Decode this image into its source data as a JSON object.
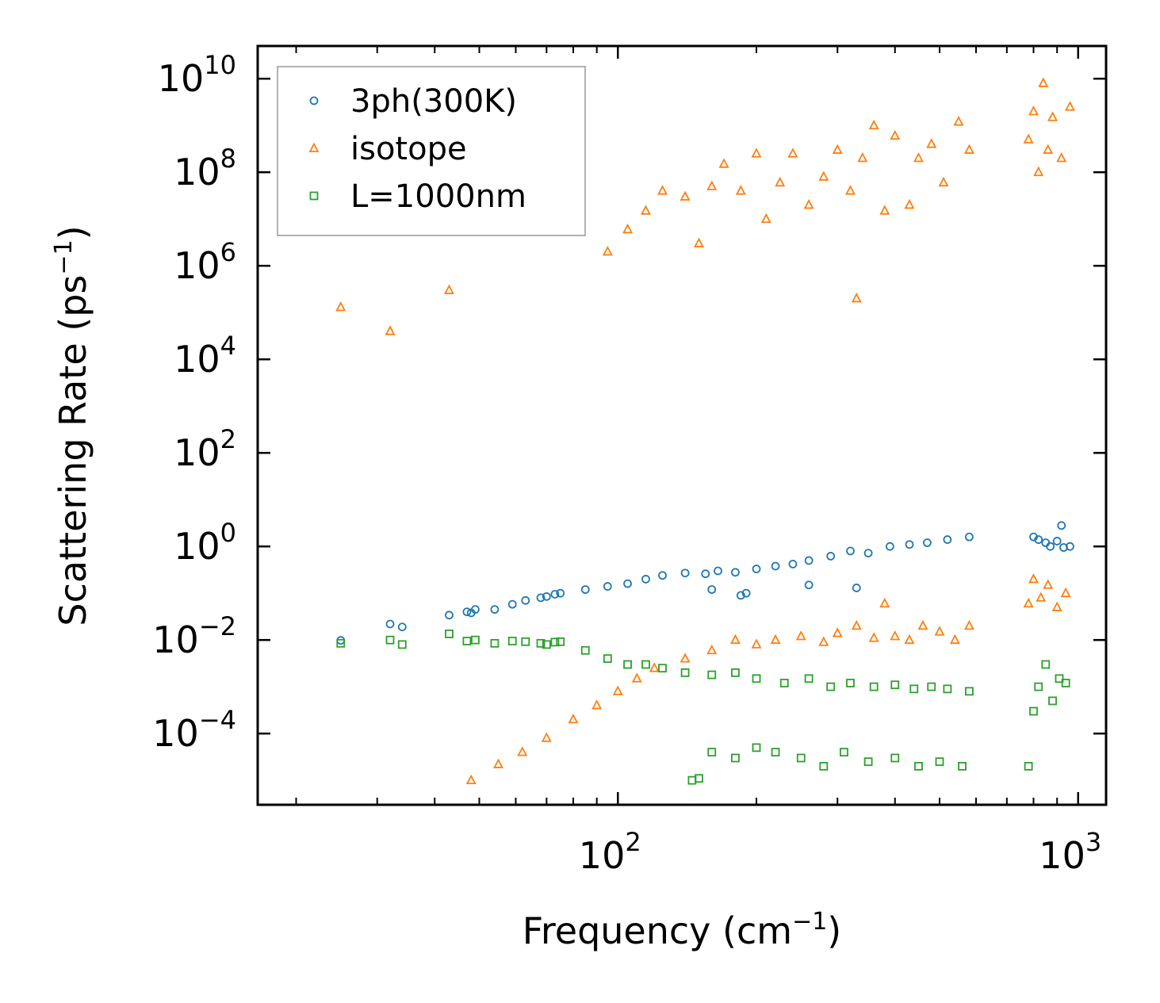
{
  "chart_data": {
    "type": "scatter",
    "title": "",
    "xlabel": "Frequency (cm",
    "xlabel_sup": "−1",
    "xlabel_tail": ")",
    "ylabel": "Scattering Rate (ps",
    "ylabel_sup": "−1",
    "ylabel_tail": ")",
    "xscale": "log",
    "yscale": "log",
    "xlim": [
      16.5,
      1150
    ],
    "ylim": [
      3e-06,
      50000000000.0
    ],
    "x_ticks": [
      {
        "value": 100,
        "base": "10",
        "exp": "2"
      },
      {
        "value": 1000,
        "base": "10",
        "exp": "3"
      }
    ],
    "y_ticks": [
      {
        "value": 0.0001,
        "base": "10",
        "exp": "−4"
      },
      {
        "value": 0.01,
        "base": "10",
        "exp": "−2"
      },
      {
        "value": 1,
        "base": "10",
        "exp": "0"
      },
      {
        "value": 100,
        "base": "10",
        "exp": "2"
      },
      {
        "value": 10000.0,
        "base": "10",
        "exp": "4"
      },
      {
        "value": 1000000.0,
        "base": "10",
        "exp": "6"
      },
      {
        "value": 100000000.0,
        "base": "10",
        "exp": "8"
      },
      {
        "value": 10000000000.0,
        "base": "10",
        "exp": "10"
      }
    ],
    "legend_position": "top-left",
    "series": [
      {
        "name": "3ph(300K)",
        "marker": "circle",
        "color": "#1f77b4",
        "points": [
          [
            25,
            0.0098
          ],
          [
            32,
            0.022
          ],
          [
            34,
            0.019
          ],
          [
            43,
            0.034
          ],
          [
            47,
            0.04
          ],
          [
            48,
            0.038
          ],
          [
            49,
            0.045
          ],
          [
            54,
            0.045
          ],
          [
            59,
            0.058
          ],
          [
            63,
            0.07
          ],
          [
            68,
            0.08
          ],
          [
            70,
            0.085
          ],
          [
            73,
            0.095
          ],
          [
            75,
            0.1
          ],
          [
            85,
            0.12
          ],
          [
            95,
            0.14
          ],
          [
            105,
            0.16
          ],
          [
            115,
            0.2
          ],
          [
            125,
            0.24
          ],
          [
            140,
            0.27
          ],
          [
            155,
            0.26
          ],
          [
            165,
            0.3
          ],
          [
            180,
            0.28
          ],
          [
            200,
            0.33
          ],
          [
            220,
            0.38
          ],
          [
            240,
            0.42
          ],
          [
            260,
            0.5
          ],
          [
            290,
            0.62
          ],
          [
            320,
            0.8
          ],
          [
            350,
            0.72
          ],
          [
            390,
            1.0
          ],
          [
            430,
            1.1
          ],
          [
            470,
            1.2
          ],
          [
            520,
            1.4
          ],
          [
            580,
            1.6
          ],
          [
            160,
            0.12
          ],
          [
            185,
            0.09
          ],
          [
            190,
            0.1
          ],
          [
            330,
            0.13
          ],
          [
            260,
            0.15
          ],
          [
            800,
            1.6
          ],
          [
            820,
            1.4
          ],
          [
            850,
            1.2
          ],
          [
            870,
            1.0
          ],
          [
            900,
            1.3
          ],
          [
            930,
            0.95
          ],
          [
            960,
            1.0
          ],
          [
            920,
            2.8
          ]
        ]
      },
      {
        "name": "isotope",
        "marker": "triangle",
        "color": "#ff7f0e",
        "points": [
          [
            25,
            130000.0
          ],
          [
            32,
            40000.0
          ],
          [
            43,
            300000.0
          ],
          [
            330,
            200000.0
          ],
          [
            95,
            2000000.0
          ],
          [
            105,
            6000000.0
          ],
          [
            115,
            15000000.0
          ],
          [
            125,
            40000000.0
          ],
          [
            140,
            30000000.0
          ],
          [
            150,
            3000000.0
          ],
          [
            160,
            50000000.0
          ],
          [
            170,
            150000000.0
          ],
          [
            185,
            40000000.0
          ],
          [
            200,
            250000000.0
          ],
          [
            210,
            10000000.0
          ],
          [
            225,
            60000000.0
          ],
          [
            240,
            250000000.0
          ],
          [
            260,
            20000000.0
          ],
          [
            280,
            80000000.0
          ],
          [
            300,
            300000000.0
          ],
          [
            320,
            40000000.0
          ],
          [
            340,
            200000000.0
          ],
          [
            360,
            1000000000.0
          ],
          [
            380,
            15000000.0
          ],
          [
            400,
            600000000.0
          ],
          [
            430,
            20000000.0
          ],
          [
            450,
            200000000.0
          ],
          [
            480,
            400000000.0
          ],
          [
            510,
            60000000.0
          ],
          [
            550,
            1200000000.0
          ],
          [
            580,
            300000000.0
          ],
          [
            780,
            500000000.0
          ],
          [
            800,
            2000000000.0
          ],
          [
            820,
            100000000.0
          ],
          [
            840,
            8000000000.0
          ],
          [
            860,
            300000000.0
          ],
          [
            880,
            1500000000.0
          ],
          [
            920,
            200000000.0
          ],
          [
            960,
            2500000000.0
          ],
          [
            48,
            1e-05
          ],
          [
            55,
            2.2e-05
          ],
          [
            62,
            4e-05
          ],
          [
            70,
            8e-05
          ],
          [
            80,
            0.0002
          ],
          [
            90,
            0.0004
          ],
          [
            100,
            0.0008
          ],
          [
            110,
            0.0015
          ],
          [
            120,
            0.0025
          ],
          [
            140,
            0.004
          ],
          [
            160,
            0.006
          ],
          [
            180,
            0.01
          ],
          [
            200,
            0.008
          ],
          [
            220,
            0.01
          ],
          [
            250,
            0.012
          ],
          [
            280,
            0.009
          ],
          [
            300,
            0.014
          ],
          [
            330,
            0.02
          ],
          [
            360,
            0.011
          ],
          [
            380,
            0.06
          ],
          [
            400,
            0.012
          ],
          [
            430,
            0.01
          ],
          [
            460,
            0.02
          ],
          [
            500,
            0.015
          ],
          [
            540,
            0.01
          ],
          [
            580,
            0.02
          ],
          [
            780,
            0.06
          ],
          [
            800,
            0.2
          ],
          [
            830,
            0.08
          ],
          [
            860,
            0.15
          ],
          [
            900,
            0.05
          ],
          [
            940,
            0.1
          ]
        ]
      },
      {
        "name": "L=1000nm",
        "marker": "square",
        "color": "#2ca02c",
        "points": [
          [
            25,
            0.0085
          ],
          [
            32,
            0.01
          ],
          [
            34,
            0.008
          ],
          [
            43,
            0.0135
          ],
          [
            47,
            0.0095
          ],
          [
            49,
            0.01
          ],
          [
            54,
            0.0085
          ],
          [
            59,
            0.0095
          ],
          [
            63,
            0.0092
          ],
          [
            68,
            0.0085
          ],
          [
            70,
            0.008
          ],
          [
            73,
            0.009
          ],
          [
            75,
            0.0092
          ],
          [
            85,
            0.006
          ],
          [
            95,
            0.004
          ],
          [
            105,
            0.003
          ],
          [
            115,
            0.003
          ],
          [
            125,
            0.0025
          ],
          [
            140,
            0.002
          ],
          [
            160,
            0.0018
          ],
          [
            180,
            0.002
          ],
          [
            200,
            0.0015
          ],
          [
            230,
            0.0012
          ],
          [
            260,
            0.0015
          ],
          [
            290,
            0.001
          ],
          [
            320,
            0.0012
          ],
          [
            360,
            0.001
          ],
          [
            400,
            0.0011
          ],
          [
            440,
            0.0009
          ],
          [
            480,
            0.001
          ],
          [
            520,
            0.0009
          ],
          [
            580,
            0.0008
          ],
          [
            145,
            1e-05
          ],
          [
            150,
            1.1e-05
          ],
          [
            160,
            4e-05
          ],
          [
            180,
            3e-05
          ],
          [
            200,
            5e-05
          ],
          [
            220,
            4e-05
          ],
          [
            250,
            3e-05
          ],
          [
            280,
            2e-05
          ],
          [
            310,
            4e-05
          ],
          [
            350,
            2.5e-05
          ],
          [
            400,
            3e-05
          ],
          [
            450,
            2e-05
          ],
          [
            500,
            2.5e-05
          ],
          [
            560,
            2e-05
          ],
          [
            780,
            2e-05
          ],
          [
            800,
            0.0003
          ],
          [
            820,
            0.001
          ],
          [
            850,
            0.003
          ],
          [
            880,
            0.0005
          ],
          [
            910,
            0.0015
          ],
          [
            940,
            0.0012
          ]
        ]
      }
    ]
  }
}
